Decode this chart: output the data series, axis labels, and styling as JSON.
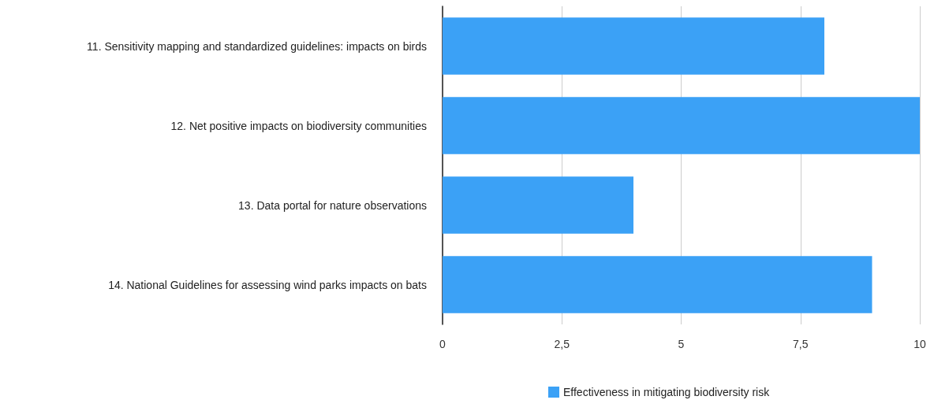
{
  "chart_data": {
    "type": "bar",
    "orientation": "horizontal",
    "categories": [
      "11. Sensitivity mapping and standardized guidelines: impacts on birds",
      "12. Net positive impacts on biodiversity communities",
      "13. Data portal for nature observations",
      "14. National Guidelines for assessing wind parks impacts on bats"
    ],
    "series": [
      {
        "name": "Effectiveness in mitigating biodiversity risk",
        "color": "#3ba1f6",
        "values": [
          8,
          10,
          4,
          9
        ]
      }
    ],
    "xlim": [
      0,
      10
    ],
    "xticks": [
      0,
      {
        "value": 2.5,
        "label": "2,5"
      },
      5,
      {
        "value": 7.5,
        "label": "7,5"
      },
      10
    ],
    "grid": "x",
    "legend": "bottom"
  }
}
